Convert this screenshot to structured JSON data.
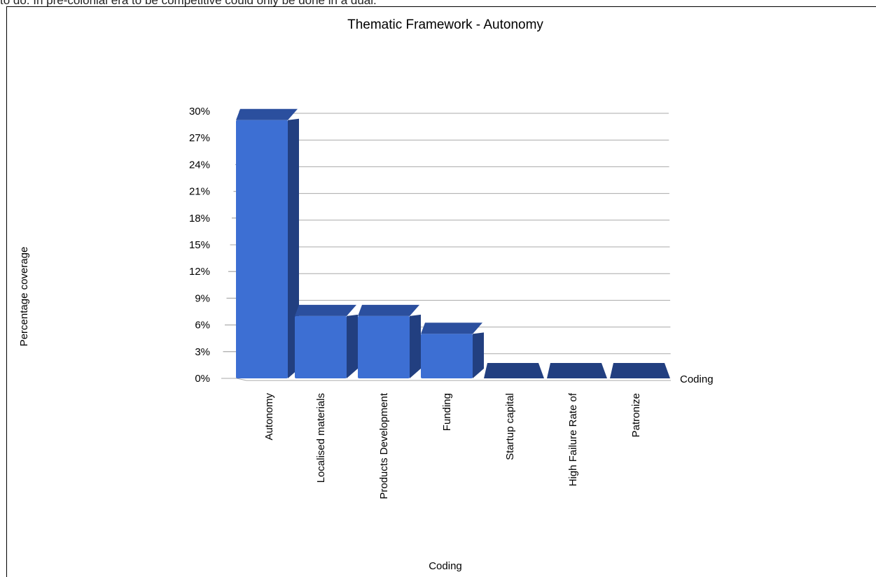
{
  "page_caption": "to do. In pre-colonial era to be competitive could only be done in a dual.",
  "chart_data": {
    "type": "bar",
    "title": "Thematic Framework - Autonomy",
    "xlabel": "Coding",
    "ylabel": "Percentage coverage",
    "depth_axis_label": "Coding",
    "categories": [
      "Autonomy",
      "Localised materials",
      "Products Development",
      "Funding",
      "Startup capital",
      "High Failure Rate of",
      "Patronize"
    ],
    "values": [
      29,
      7,
      7,
      5,
      0,
      0,
      0
    ],
    "ylim": [
      0,
      30
    ],
    "yticks": [
      "0%",
      "3%",
      "6%",
      "9%",
      "12%",
      "15%",
      "18%",
      "21%",
      "24%",
      "27%",
      "30%"
    ],
    "grid": true,
    "legend": "none",
    "colors": {
      "bar_front": "#3d6fd3",
      "bar_side": "#223f80",
      "bar_top": "#2b4f9e",
      "grid": "#a9a9a9"
    }
  }
}
